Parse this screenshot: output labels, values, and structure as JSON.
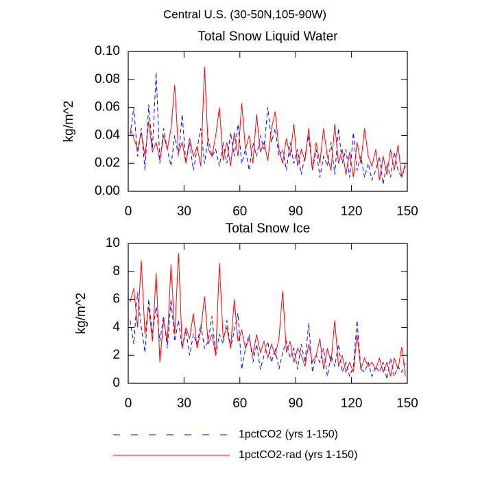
{
  "title": "Central U.S. (30-50N,105-90W)",
  "chart_data": [
    {
      "type": "line",
      "title": "Total Snow Liquid Water",
      "y_label": "kg/m^2",
      "x": [
        1,
        3,
        5,
        7,
        9,
        11,
        13,
        15,
        17,
        19,
        21,
        23,
        25,
        27,
        29,
        31,
        33,
        35,
        37,
        39,
        41,
        43,
        45,
        47,
        49,
        51,
        53,
        55,
        57,
        59,
        61,
        63,
        65,
        67,
        69,
        71,
        73,
        75,
        77,
        79,
        81,
        83,
        85,
        87,
        89,
        91,
        93,
        95,
        97,
        99,
        101,
        103,
        105,
        107,
        109,
        111,
        113,
        115,
        117,
        119,
        121,
        123,
        125,
        127,
        129,
        131,
        133,
        135,
        137,
        139,
        141,
        143,
        145,
        147,
        149
      ],
      "xlim": [
        0,
        150
      ],
      "xticks": [
        0,
        30,
        60,
        90,
        120,
        150
      ],
      "ylim": [
        0,
        0.1
      ],
      "yticks": [
        {
          "value": 0,
          "label": "0.00"
        },
        {
          "value": 0.02,
          "label": "0.02"
        },
        {
          "value": 0.04,
          "label": "0.04"
        },
        {
          "value": 0.06,
          "label": "0.06"
        },
        {
          "value": 0.08,
          "label": "0.08"
        },
        {
          "value": 0.1,
          "label": "0.10"
        }
      ],
      "series": [
        {
          "name": "1pctCO2 (yrs 1-150)",
          "color": "#0000ff",
          "line_style": "dashed",
          "values": [
            0.04,
            0.06,
            0.025,
            0.045,
            0.015,
            0.062,
            0.03,
            0.085,
            0.02,
            0.045,
            0.03,
            0.018,
            0.04,
            0.025,
            0.055,
            0.02,
            0.035,
            0.015,
            0.03,
            0.045,
            0.02,
            0.038,
            0.025,
            0.03,
            0.018,
            0.035,
            0.02,
            0.042,
            0.025,
            0.048,
            0.02,
            0.03,
            0.015,
            0.035,
            0.025,
            0.04,
            0.03,
            0.06,
            0.035,
            0.045,
            0.025,
            0.03,
            0.015,
            0.035,
            0.02,
            0.03,
            0.012,
            0.025,
            0.04,
            0.015,
            0.03,
            0.01,
            0.025,
            0.018,
            0.035,
            0.012,
            0.045,
            0.02,
            0.03,
            0.01,
            0.042,
            0.015,
            0.025,
            0.01,
            0.02,
            0.008,
            0.015,
            0.025,
            0.005,
            0.02,
            0.01,
            0.028,
            0.015,
            0.01,
            0.018
          ]
        },
        {
          "name": "1pctCO2-rad (yrs 1-150)",
          "color": "#ff0000",
          "line_style": "solid",
          "values": [
            0.045,
            0.038,
            0.03,
            0.042,
            0.025,
            0.05,
            0.028,
            0.035,
            0.022,
            0.04,
            0.03,
            0.045,
            0.076,
            0.028,
            0.035,
            0.02,
            0.038,
            0.025,
            0.032,
            0.018,
            0.089,
            0.03,
            0.025,
            0.04,
            0.06,
            0.022,
            0.035,
            0.018,
            0.042,
            0.025,
            0.063,
            0.03,
            0.04,
            0.02,
            0.055,
            0.028,
            0.035,
            0.022,
            0.045,
            0.057,
            0.03,
            0.02,
            0.038,
            0.025,
            0.048,
            0.018,
            0.03,
            0.022,
            0.045,
            0.015,
            0.035,
            0.02,
            0.045,
            0.025,
            0.015,
            0.048,
            0.02,
            0.03,
            0.012,
            0.028,
            0.01,
            0.035,
            0.02,
            0.045,
            0.025,
            0.018,
            0.03,
            0.008,
            0.025,
            0.012,
            0.03,
            0.015,
            0.033,
            0.01,
            0.02
          ]
        }
      ]
    },
    {
      "type": "line",
      "title": "Total Snow Ice",
      "y_label": "kg/m^2",
      "x": [
        1,
        3,
        5,
        7,
        9,
        11,
        13,
        15,
        17,
        19,
        21,
        23,
        25,
        27,
        29,
        31,
        33,
        35,
        37,
        39,
        41,
        43,
        45,
        47,
        49,
        51,
        53,
        55,
        57,
        59,
        61,
        63,
        65,
        67,
        69,
        71,
        73,
        75,
        77,
        79,
        81,
        83,
        85,
        87,
        89,
        91,
        93,
        95,
        97,
        99,
        101,
        103,
        105,
        107,
        109,
        111,
        113,
        115,
        117,
        119,
        121,
        123,
        125,
        127,
        129,
        131,
        133,
        135,
        137,
        139,
        141,
        143,
        145,
        147,
        149
      ],
      "xlim": [
        0,
        150
      ],
      "xticks": [
        0,
        30,
        60,
        90,
        120,
        150
      ],
      "ylim": [
        0,
        10
      ],
      "yticks": [
        0,
        2,
        4,
        6,
        8,
        10
      ],
      "series": [
        {
          "name": "1pctCO2 (yrs 1-150)",
          "color": "#0000ff",
          "line_style": "dashed",
          "values": [
            4.5,
            2.8,
            6.5,
            4.0,
            2.2,
            6.0,
            3.5,
            5.5,
            3.0,
            4.8,
            2.5,
            6.0,
            3.0,
            4.5,
            2.5,
            3.8,
            2.0,
            3.5,
            2.8,
            4.2,
            2.5,
            3.0,
            4.8,
            2.0,
            3.5,
            2.8,
            4.5,
            2.5,
            3.8,
            5.0,
            1.0,
            2.5,
            3.5,
            1.5,
            2.8,
            1.0,
            2.0,
            3.0,
            1.5,
            2.5,
            1.0,
            2.2,
            3.0,
            1.8,
            2.5,
            1.0,
            2.8,
            1.5,
            4.3,
            0.8,
            2.0,
            1.5,
            2.5,
            0.5,
            2.0,
            1.2,
            2.8,
            0.8,
            1.5,
            0.5,
            1.2,
            4.5,
            1.0,
            0.8,
            1.5,
            0.5,
            1.2,
            0.8,
            1.5,
            0.3,
            1.8,
            0.5,
            1.2,
            0.8,
            1.5
          ]
        },
        {
          "name": "1pctCO2-rad (yrs 1-150)",
          "color": "#ff0000",
          "line_style": "solid",
          "values": [
            5.8,
            6.8,
            4.0,
            8.8,
            3.5,
            5.5,
            3.0,
            7.9,
            1.5,
            4.5,
            3.0,
            8.5,
            3.5,
            9.3,
            2.5,
            4.0,
            3.2,
            5.0,
            2.5,
            3.8,
            6.2,
            2.8,
            3.5,
            2.0,
            8.6,
            3.2,
            4.0,
            2.5,
            6.0,
            3.0,
            3.8,
            2.5,
            3.2,
            2.0,
            3.5,
            2.2,
            3.0,
            1.8,
            2.8,
            2.0,
            3.2,
            6.6,
            2.2,
            3.0,
            1.5,
            2.5,
            2.0,
            1.2,
            2.8,
            1.5,
            2.0,
            3.2,
            1.0,
            2.5,
            1.5,
            4.5,
            1.2,
            2.0,
            0.8,
            1.5,
            0.8,
            3.5,
            1.0,
            1.8,
            1.2,
            1.5,
            1.0,
            1.8,
            0.8,
            1.5,
            0.5,
            1.8,
            1.0,
            2.6,
            0.5
          ]
        }
      ]
    }
  ]
}
